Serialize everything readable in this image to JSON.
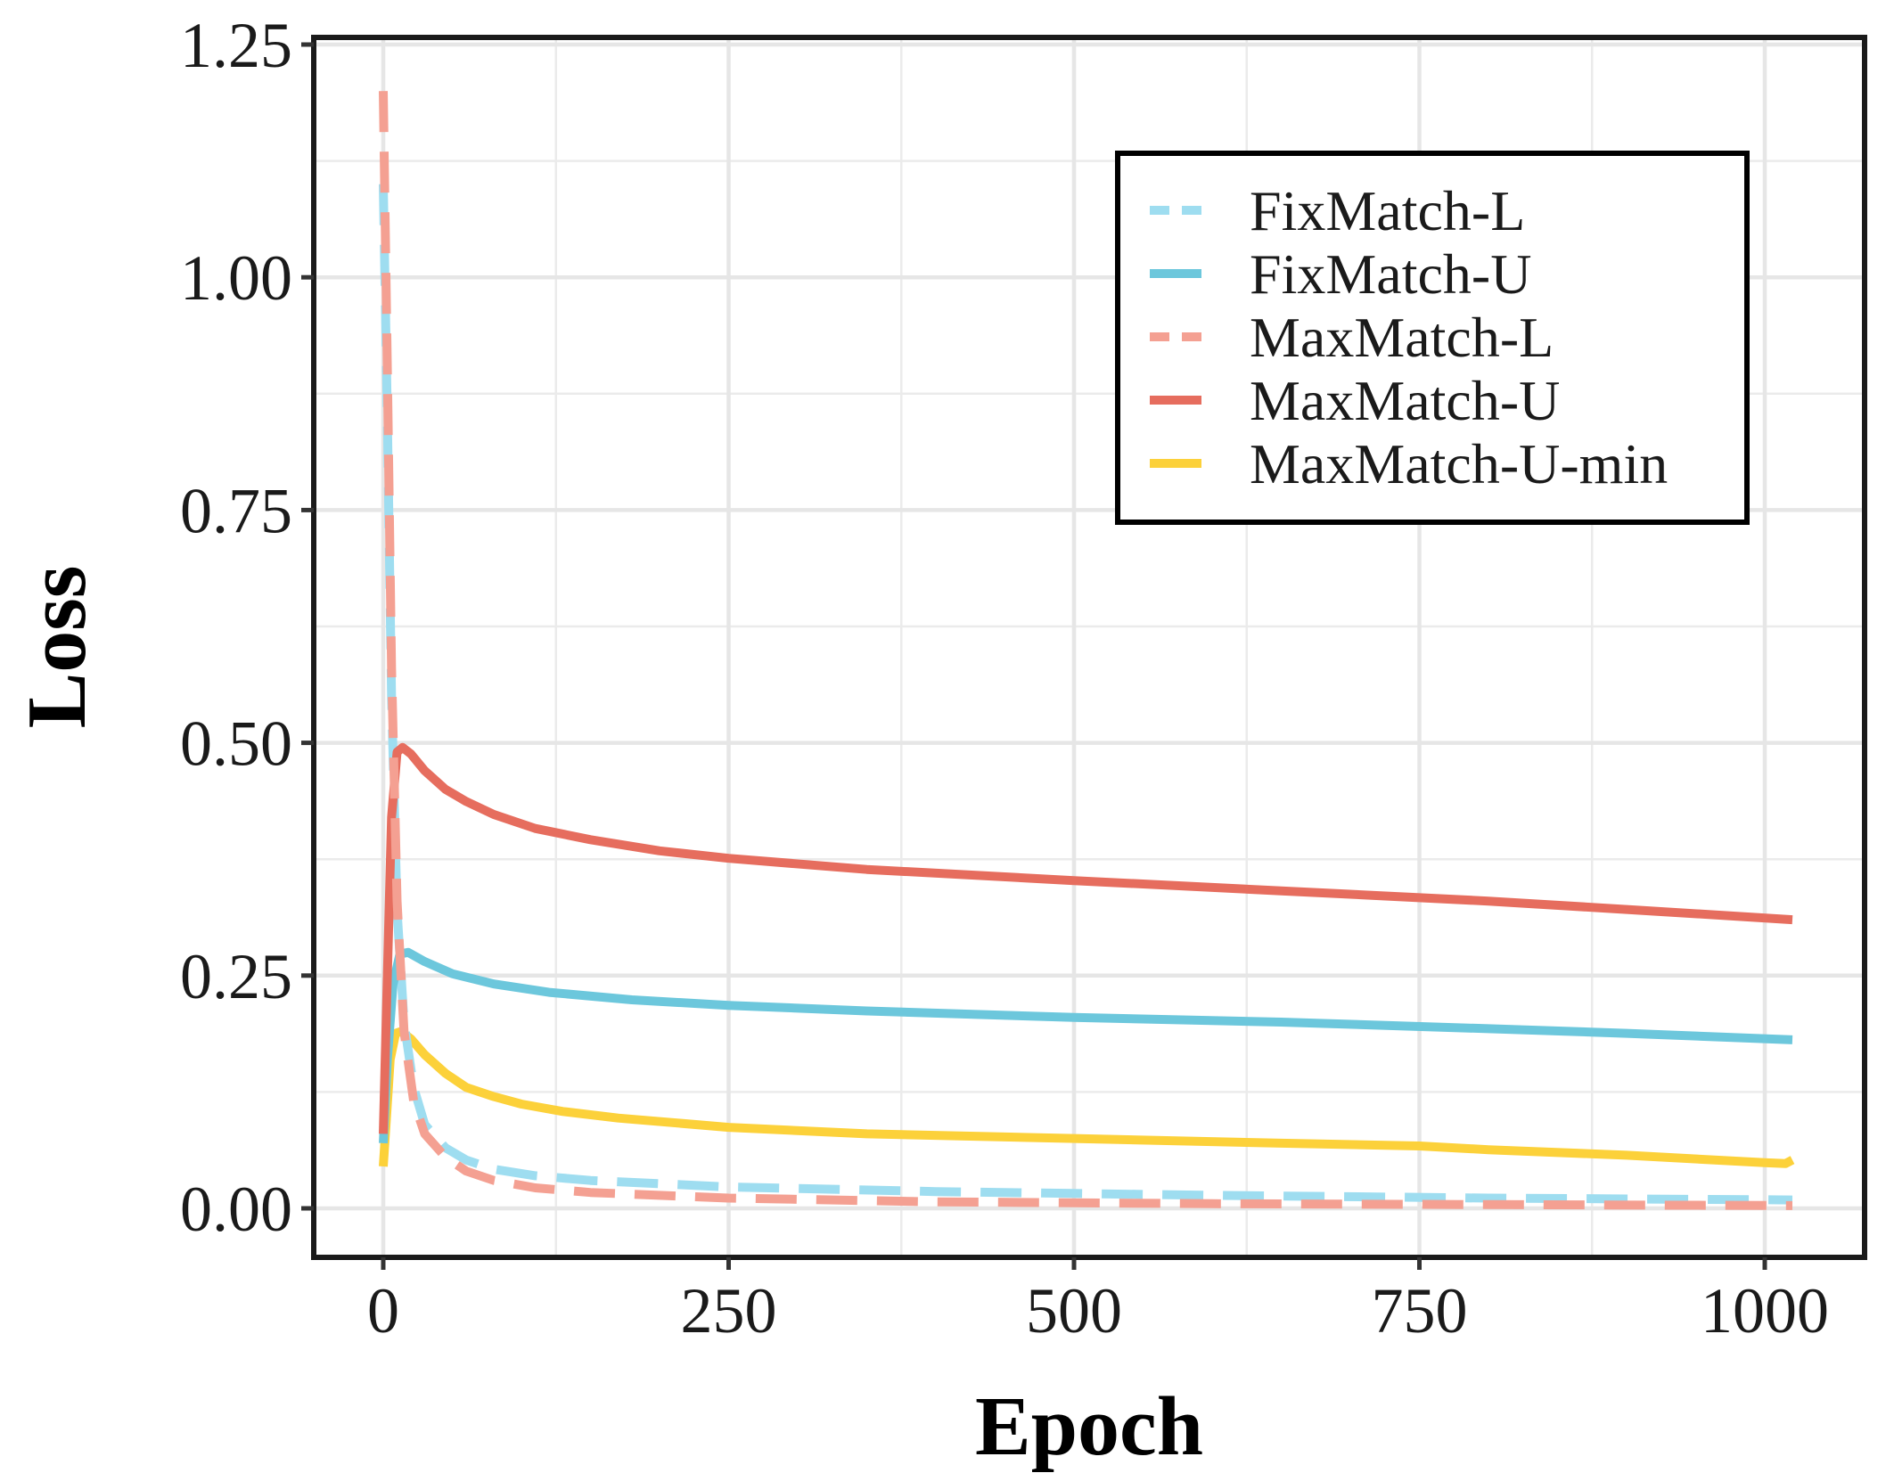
{
  "chart_data": {
    "type": "line",
    "title": "",
    "xlabel": "Epoch",
    "ylabel": "Loss",
    "xlim": [
      -50,
      1075
    ],
    "ylim": [
      -0.055,
      1.255
    ],
    "xticks": [
      0,
      250,
      500,
      750,
      1000
    ],
    "xtick_labels": [
      "0",
      "250",
      "500",
      "750",
      "1000"
    ],
    "yticks": [
      0,
      0.25,
      0.5,
      0.75,
      1.0,
      1.25
    ],
    "ytick_labels": [
      "0.00",
      "0.25",
      "0.50",
      "0.75",
      "1.00",
      "1.25"
    ],
    "grid": true,
    "legend_position": "top-right",
    "series": [
      {
        "name": "FixMatch-L",
        "color": "#9EDDF0",
        "dash": "dashed",
        "points": [
          [
            0,
            1.1
          ],
          [
            3,
            0.85
          ],
          [
            6,
            0.55
          ],
          [
            10,
            0.32
          ],
          [
            15,
            0.2
          ],
          [
            22,
            0.13
          ],
          [
            30,
            0.09
          ],
          [
            45,
            0.065
          ],
          [
            60,
            0.052
          ],
          [
            80,
            0.042
          ],
          [
            110,
            0.035
          ],
          [
            150,
            0.03
          ],
          [
            250,
            0.023
          ],
          [
            400,
            0.018
          ],
          [
            600,
            0.014
          ],
          [
            800,
            0.011
          ],
          [
            1020,
            0.009
          ]
        ]
      },
      {
        "name": "FixMatch-U",
        "color": "#6CC7DC",
        "dash": "solid",
        "points": [
          [
            0,
            0.07
          ],
          [
            3,
            0.16
          ],
          [
            7,
            0.24
          ],
          [
            12,
            0.273
          ],
          [
            18,
            0.275
          ],
          [
            30,
            0.265
          ],
          [
            50,
            0.252
          ],
          [
            80,
            0.241
          ],
          [
            120,
            0.232
          ],
          [
            180,
            0.224
          ],
          [
            250,
            0.218
          ],
          [
            350,
            0.212
          ],
          [
            500,
            0.205
          ],
          [
            650,
            0.2
          ],
          [
            800,
            0.193
          ],
          [
            900,
            0.188
          ],
          [
            1020,
            0.181
          ]
        ]
      },
      {
        "name": "MaxMatch-L",
        "color": "#F4A092",
        "dash": "dashed",
        "points": [
          [
            0,
            1.2
          ],
          [
            3,
            0.9
          ],
          [
            6,
            0.58
          ],
          [
            10,
            0.33
          ],
          [
            15,
            0.19
          ],
          [
            22,
            0.115
          ],
          [
            30,
            0.08
          ],
          [
            45,
            0.055
          ],
          [
            60,
            0.04
          ],
          [
            80,
            0.03
          ],
          [
            110,
            0.022
          ],
          [
            150,
            0.017
          ],
          [
            250,
            0.011
          ],
          [
            400,
            0.007
          ],
          [
            600,
            0.005
          ],
          [
            800,
            0.004
          ],
          [
            1020,
            0.003
          ]
        ]
      },
      {
        "name": "MaxMatch-U",
        "color": "#E66D5E",
        "dash": "solid",
        "points": [
          [
            0,
            0.08
          ],
          [
            3,
            0.25
          ],
          [
            6,
            0.42
          ],
          [
            10,
            0.49
          ],
          [
            14,
            0.495
          ],
          [
            20,
            0.488
          ],
          [
            30,
            0.47
          ],
          [
            45,
            0.45
          ],
          [
            60,
            0.437
          ],
          [
            80,
            0.423
          ],
          [
            110,
            0.408
          ],
          [
            150,
            0.396
          ],
          [
            200,
            0.384
          ],
          [
            250,
            0.376
          ],
          [
            350,
            0.364
          ],
          [
            500,
            0.352
          ],
          [
            650,
            0.341
          ],
          [
            800,
            0.33
          ],
          [
            900,
            0.321
          ],
          [
            1020,
            0.31
          ]
        ]
      },
      {
        "name": "MaxMatch-U-min",
        "color": "#FCD13A",
        "dash": "solid",
        "points": [
          [
            0,
            0.045
          ],
          [
            2,
            0.09
          ],
          [
            5,
            0.16
          ],
          [
            9,
            0.188
          ],
          [
            13,
            0.19
          ],
          [
            20,
            0.182
          ],
          [
            30,
            0.165
          ],
          [
            45,
            0.145
          ],
          [
            60,
            0.13
          ],
          [
            80,
            0.12
          ],
          [
            100,
            0.112
          ],
          [
            130,
            0.104
          ],
          [
            170,
            0.097
          ],
          [
            250,
            0.087
          ],
          [
            350,
            0.08
          ],
          [
            500,
            0.075
          ],
          [
            650,
            0.07
          ],
          [
            750,
            0.067
          ],
          [
            800,
            0.063
          ],
          [
            900,
            0.057
          ],
          [
            1000,
            0.049
          ],
          [
            1015,
            0.048
          ],
          [
            1020,
            0.052
          ]
        ]
      }
    ]
  }
}
